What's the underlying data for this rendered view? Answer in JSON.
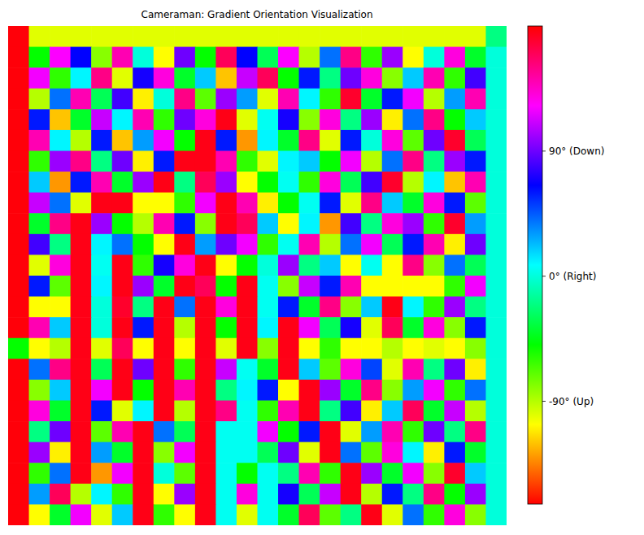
{
  "chart_data": {
    "type": "heatmap",
    "title": "Cameraman: Gradient Orientation Visualization",
    "tick_labels": false,
    "colorbar_range": [
      -164,
      180
    ],
    "colorbar_ticks": [
      {
        "value": -90,
        "label": "-90° (Up)"
      },
      {
        "value": 0,
        "label": "0° (Right)"
      },
      {
        "value": 90,
        "label": "90° (Down)"
      }
    ],
    "values": [
      [
        178,
        -100,
        -100,
        -100,
        -100,
        -100,
        -100,
        -100,
        -100,
        -100,
        -100,
        -100,
        -100,
        -100,
        -100,
        -100,
        -100,
        -100,
        -100,
        -100,
        -100,
        -100,
        -100,
        -20
      ],
      [
        178,
        -50,
        122,
        65,
        -80,
        140,
        0,
        -107,
        90,
        -50,
        160,
        65,
        -30,
        122,
        -90,
        40,
        150,
        -60,
        100,
        -107,
        0,
        130,
        -40,
        0
      ],
      [
        178,
        120,
        -60,
        10,
        150,
        -100,
        70,
        130,
        -40,
        20,
        -120,
        110,
        160,
        -50,
        60,
        -20,
        90,
        130,
        -80,
        20,
        140,
        -60,
        80,
        0
      ],
      [
        178,
        -90,
        40,
        140,
        -30,
        80,
        -110,
        0,
        150,
        -70,
        100,
        30,
        -100,
        140,
        10,
        -60,
        170,
        -40,
        60,
        120,
        -90,
        30,
        140,
        0
      ],
      [
        178,
        60,
        -120,
        -40,
        110,
        10,
        140,
        -60,
        90,
        130,
        175,
        -100,
        5,
        70,
        -80,
        130,
        -20,
        100,
        -110,
        40,
        150,
        -50,
        20,
        0
      ],
      [
        178,
        140,
        10,
        -90,
        60,
        -120,
        30,
        120,
        -50,
        175,
        60,
        -130,
        10,
        -40,
        150,
        -100,
        60,
        0,
        130,
        -70,
        90,
        170,
        -30,
        0
      ],
      [
        178,
        -60,
        100,
        150,
        -20,
        90,
        -110,
        60,
        175,
        175,
        140,
        -60,
        -100,
        10,
        20,
        -50,
        120,
        -90,
        40,
        150,
        -20,
        100,
        60,
        0
      ],
      [
        178,
        20,
        -130,
        60,
        140,
        -40,
        100,
        175,
        -20,
        160,
        100,
        -107,
        -50,
        5,
        -60,
        130,
        -30,
        80,
        170,
        -90,
        10,
        -120,
        140,
        0
      ],
      [
        178,
        110,
        40,
        -100,
        175,
        175,
        -107,
        -107,
        -60,
        120,
        175,
        140,
        -110,
        -50,
        5,
        60,
        -100,
        150,
        20,
        -40,
        130,
        60,
        -70,
        0
      ],
      [
        178,
        -40,
        150,
        175,
        100,
        -50,
        -90,
        140,
        60,
        -80,
        175,
        160,
        20,
        -107,
        10,
        -130,
        80,
        -20,
        130,
        100,
        -60,
        170,
        30,
        0
      ],
      [
        178,
        80,
        -20,
        175,
        10,
        40,
        -50,
        -107,
        175,
        30,
        90,
        120,
        -60,
        5,
        140,
        -90,
        40,
        120,
        -30,
        60,
        140,
        -110,
        90,
        0
      ],
      [
        178,
        -100,
        130,
        175,
        5,
        175,
        -60,
        70,
        130,
        175,
        -107,
        -50,
        0,
        100,
        -20,
        20,
        -107,
        5,
        -107,
        150,
        -80,
        40,
        -30,
        0
      ],
      [
        178,
        60,
        -70,
        175,
        10,
        175,
        100,
        -40,
        175,
        160,
        -50,
        175,
        5,
        -80,
        110,
        60,
        140,
        -107,
        -107,
        -107,
        -107,
        -60,
        120,
        0
      ],
      [
        178,
        -107,
        -107,
        175,
        0,
        170,
        -20,
        175,
        40,
        175,
        130,
        175,
        5,
        60,
        -40,
        150,
        -80,
        20,
        175,
        10,
        -60,
        100,
        -20,
        0
      ],
      [
        178,
        140,
        20,
        175,
        0,
        175,
        60,
        175,
        -90,
        175,
        -50,
        175,
        10,
        175,
        120,
        -30,
        70,
        -100,
        160,
        -40,
        130,
        -80,
        60,
        0
      ],
      [
        -50,
        -107,
        -90,
        175,
        -100,
        160,
        -107,
        175,
        -107,
        175,
        -100,
        175,
        -80,
        175,
        -107,
        -60,
        -107,
        -107,
        -90,
        -107,
        -100,
        -107,
        -80,
        0
      ],
      [
        178,
        40,
        150,
        175,
        -30,
        175,
        90,
        175,
        -60,
        175,
        110,
        5,
        -40,
        175,
        20,
        -70,
        130,
        50,
        -100,
        140,
        -20,
        90,
        -110,
        0
      ],
      [
        178,
        -80,
        20,
        175,
        120,
        175,
        -50,
        175,
        140,
        175,
        -20,
        10,
        60,
        -107,
        175,
        100,
        -40,
        150,
        -80,
        30,
        120,
        -60,
        40,
        0
      ],
      [
        178,
        130,
        -40,
        175,
        60,
        -100,
        10,
        175,
        -90,
        175,
        150,
        5,
        -60,
        140,
        175,
        -20,
        80,
        -110,
        20,
        160,
        -40,
        110,
        -90,
        0
      ],
      [
        178,
        -20,
        90,
        175,
        -70,
        140,
        175,
        40,
        -30,
        175,
        5,
        5,
        120,
        -50,
        60,
        175,
        -100,
        30,
        140,
        -60,
        90,
        -20,
        150,
        0
      ],
      [
        178,
        100,
        -110,
        175,
        30,
        -40,
        175,
        -80,
        120,
        175,
        5,
        5,
        -30,
        90,
        -100,
        175,
        40,
        -70,
        130,
        10,
        -110,
        60,
        -40,
        0
      ],
      [
        178,
        -60,
        40,
        175,
        -130,
        120,
        175,
        0,
        -70,
        175,
        5,
        -50,
        5,
        -20,
        140,
        -60,
        175,
        100,
        -40,
        120,
        -80,
        170,
        20,
        0
      ],
      [
        178,
        30,
        160,
        -90,
        10,
        -60,
        175,
        -107,
        100,
        175,
        5,
        130,
        5,
        70,
        -30,
        110,
        175,
        -90,
        60,
        -20,
        150,
        -50,
        100,
        0
      ],
      [
        178,
        -107,
        -40,
        120,
        -100,
        20,
        175,
        -60,
        -107,
        175,
        5,
        -100,
        5,
        -40,
        160,
        -70,
        -20,
        175,
        -100,
        40,
        -60,
        130,
        -80,
        0
      ]
    ]
  }
}
